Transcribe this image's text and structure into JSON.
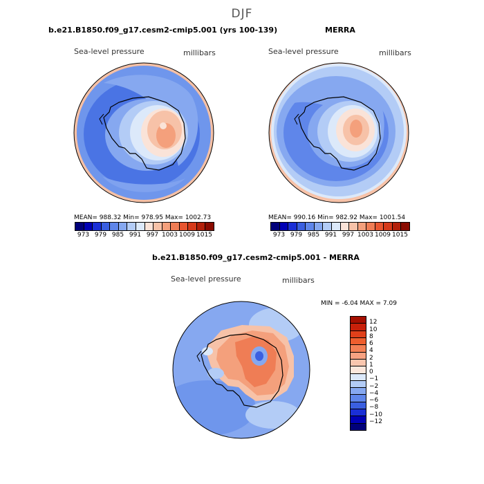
{
  "season": "DJF",
  "panels": {
    "model": {
      "title": "b.e21.B1850.f09_g17.cesm2-cmip5.001 (yrs 100-139)",
      "variable": "Sea-level pressure",
      "units": "millibars",
      "stats": "MEAN= 988.32   Min= 978.95   Max= 1002.73"
    },
    "obs": {
      "title": "MERRA",
      "variable": "Sea-level pressure",
      "units": "millibars",
      "stats": "MEAN= 990.16   Min= 982.92   Max= 1001.54"
    },
    "diff": {
      "title": "b.e21.B1850.f09_g17.cesm2-cmip5.001 - MERRA",
      "variable": "Sea-level pressure",
      "units": "millibars",
      "stats": "MIN =   -6.04  MAX =    7.09"
    }
  },
  "colorbar_abs": {
    "labels": [
      "973",
      "979",
      "985",
      "991",
      "997",
      "1003",
      "1009",
      "1015"
    ],
    "colors": [
      "#00007a",
      "#0000b5",
      "#1a2fd6",
      "#3a5fe0",
      "#5f86ea",
      "#86a8f0",
      "#b3ccf6",
      "#dce9fa",
      "#fae3d8",
      "#f7c2a8",
      "#f4a07c",
      "#ef7d55",
      "#e85630",
      "#d63a1a",
      "#b3200a",
      "#8a0b00"
    ]
  },
  "colorbar_diff": {
    "labels": [
      "12",
      "10",
      "8",
      "6",
      "4",
      "2",
      "1",
      "0",
      "−1",
      "−2",
      "−4",
      "−6",
      "−8",
      "−10",
      "−12"
    ],
    "colors": [
      "#a50f00",
      "#c8200a",
      "#e0401a",
      "#ef5e2e",
      "#f48055",
      "#f7a282",
      "#f9c6ae",
      "#fbe7dc",
      "#dce9fa",
      "#b3ccf6",
      "#86a8f0",
      "#5f86ea",
      "#3a5fe0",
      "#1a2fd6",
      "#0000b5",
      "#00007a"
    ]
  }
}
